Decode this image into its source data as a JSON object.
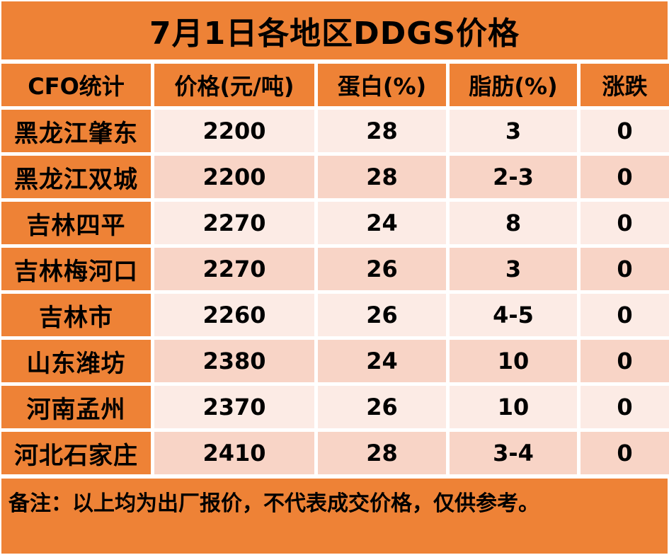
{
  "title": "7月1日各地区DDGS价格",
  "columns": [
    "CFO统计",
    "价格(元/吨)",
    "蛋白(%)",
    "脂肪(%)",
    "涨跌"
  ],
  "rows": [
    {
      "region": "黑龙江肇东",
      "price": "2200",
      "protein": "28",
      "fat": "3",
      "change": "0"
    },
    {
      "region": "黑龙江双城",
      "price": "2200",
      "protein": "28",
      "fat": "2-3",
      "change": "0"
    },
    {
      "region": "吉林四平",
      "price": "2270",
      "protein": "24",
      "fat": "8",
      "change": "0"
    },
    {
      "region": "吉林梅河口",
      "price": "2270",
      "protein": "26",
      "fat": "3",
      "change": "0"
    },
    {
      "region": "吉林市",
      "price": "2260",
      "protein": "26",
      "fat": "4-5",
      "change": "0"
    },
    {
      "region": "山东潍坊",
      "price": "2380",
      "protein": "24",
      "fat": "10",
      "change": "0"
    },
    {
      "region": "河南孟州",
      "price": "2370",
      "protein": "26",
      "fat": "10",
      "change": "0"
    },
    {
      "region": "河北石家庄",
      "price": "2410",
      "protein": "28",
      "fat": "3-4",
      "change": "0"
    }
  ],
  "note": "备注：以上均为出厂报价，不代表成交价格，仅供参考。",
  "colors": {
    "header": "#ee8236",
    "row_light": "#fcebe5",
    "row_dark": "#f8d4c6"
  }
}
